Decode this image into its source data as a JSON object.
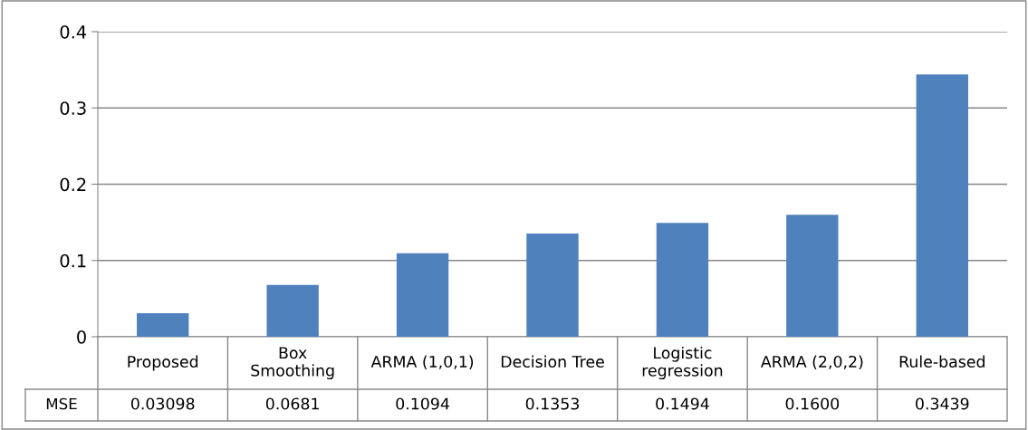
{
  "chart_data": {
    "type": "bar",
    "categories": [
      "Proposed",
      "Box Smoothing",
      "ARMA (1,0,1)",
      "Decision Tree",
      "Logistic regression",
      "ARMA (2,0,2)",
      "Rule-based"
    ],
    "series": [
      {
        "name": "MSE",
        "color": "#4f81bd",
        "values": [
          0.03098,
          0.0681,
          0.1094,
          0.1353,
          0.1494,
          0.16,
          0.3439
        ],
        "value_labels": [
          "0.03098",
          "0.0681",
          "0.1094",
          "0.1353",
          "0.1494",
          "0.1600",
          "0.3439"
        ]
      }
    ],
    "ylim": [
      0,
      0.4
    ],
    "yticks": [
      {
        "value": 0,
        "label": "0"
      },
      0.1,
      0.2,
      0.3,
      0.4
    ],
    "grid": "y",
    "legend": false
  }
}
